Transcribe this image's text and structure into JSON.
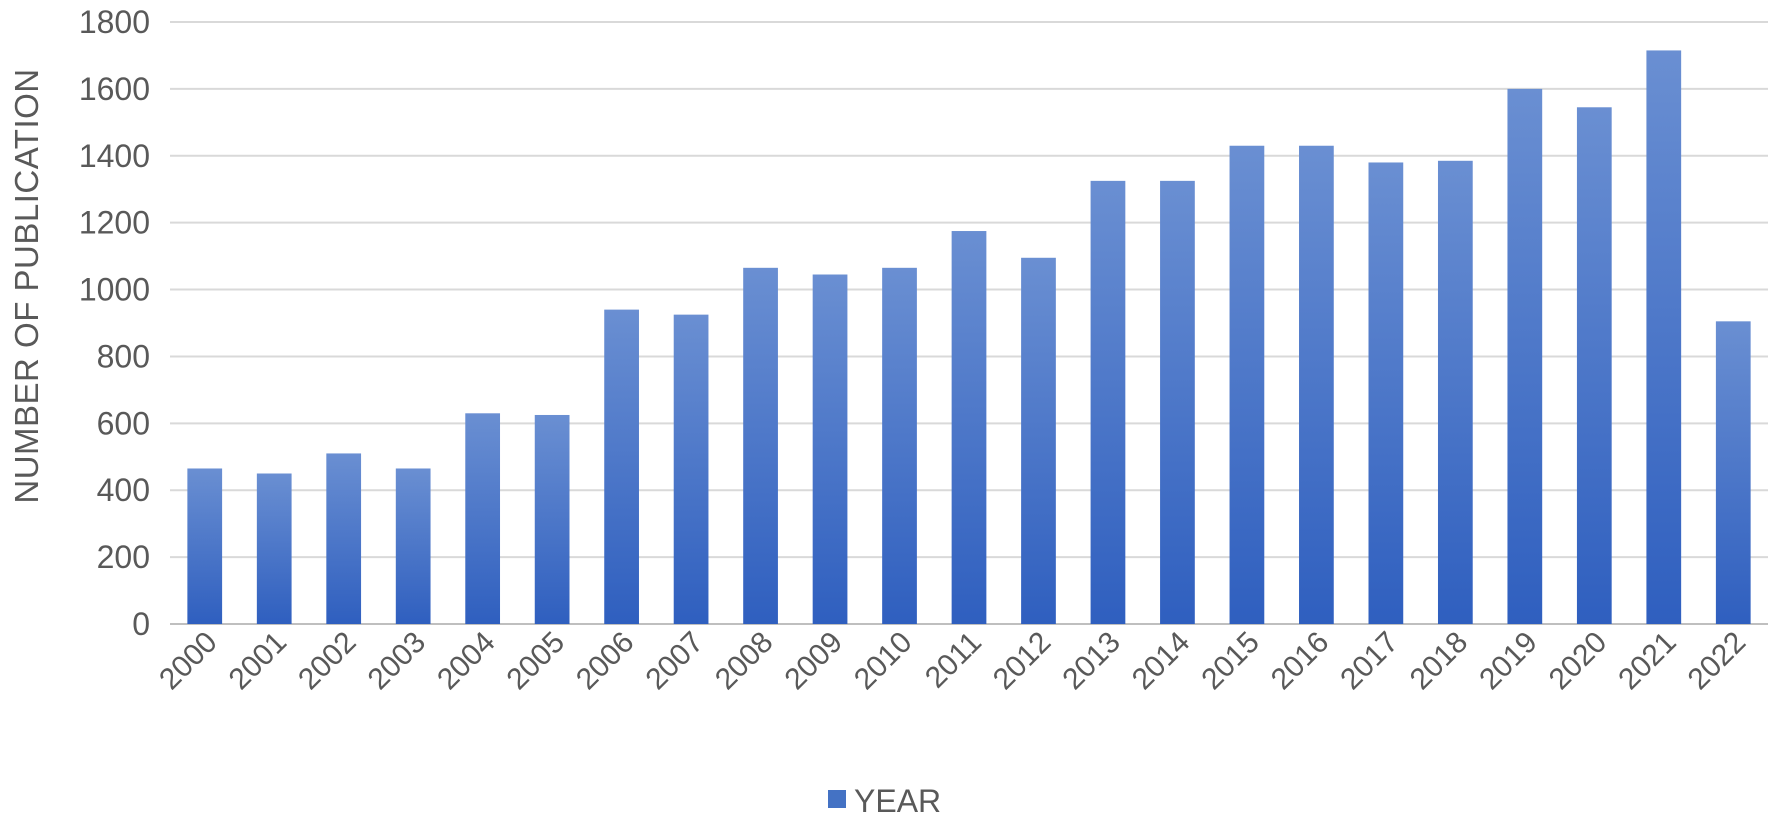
{
  "chart_data": {
    "type": "bar",
    "title": "",
    "xlabel": "",
    "ylabel": "NUMBER OF PUBLICATION",
    "ylim": [
      0,
      1800
    ],
    "yticks": [
      0,
      200,
      400,
      600,
      800,
      1000,
      1200,
      1400,
      1600,
      1800
    ],
    "grid": true,
    "legend_position": "bottom",
    "categories": [
      "2000",
      "2001",
      "2002",
      "2003",
      "2004",
      "2005",
      "2006",
      "2007",
      "2008",
      "2009",
      "2010",
      "2011",
      "2012",
      "2013",
      "2014",
      "2015",
      "2016",
      "2017",
      "2018",
      "2019",
      "2020",
      "2021",
      "2022"
    ],
    "series": [
      {
        "name": "YEAR",
        "color": "#4472C4",
        "values": [
          465,
          450,
          510,
          465,
          630,
          625,
          940,
          925,
          1065,
          1045,
          1065,
          1175,
          1095,
          1325,
          1325,
          1430,
          1430,
          1380,
          1385,
          1600,
          1545,
          1715,
          905
        ]
      }
    ]
  }
}
